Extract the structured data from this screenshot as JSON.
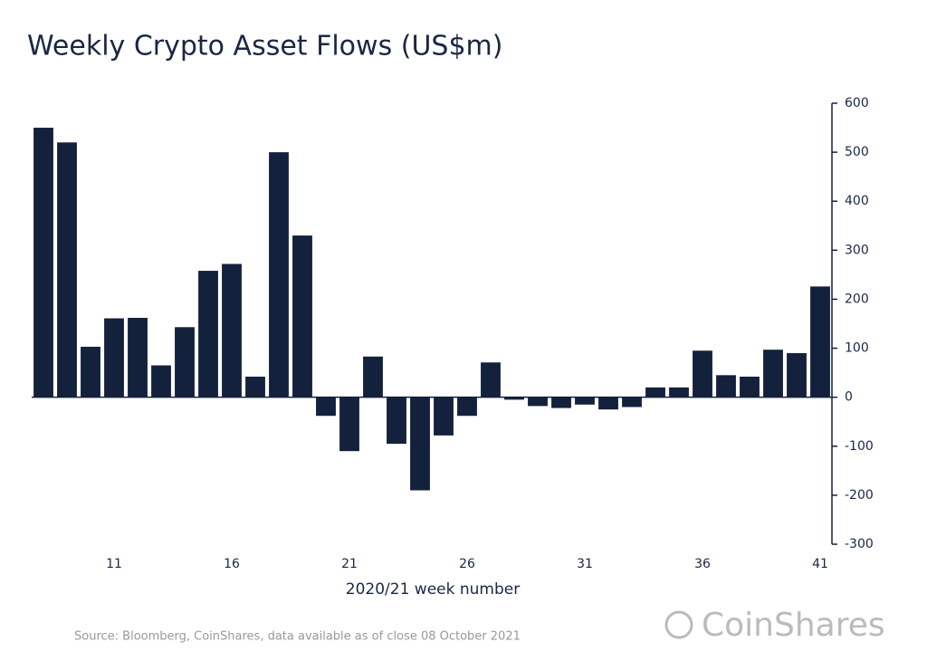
{
  "chart_data": {
    "type": "bar",
    "title": "Weekly Crypto Asset Flows (US$m)",
    "x_label": "2020/21 week number",
    "source": "Source: Bloomberg, CoinShares, data available as of close 08 October 2021",
    "brand": "CoinShares",
    "categories": [
      null,
      null,
      null,
      "11",
      null,
      null,
      null,
      null,
      "16",
      null,
      null,
      null,
      null,
      "21",
      null,
      null,
      null,
      null,
      "26",
      null,
      null,
      null,
      null,
      "31",
      null,
      null,
      null,
      null,
      "36",
      null,
      null,
      null,
      null,
      "41"
    ],
    "values": [
      550,
      520,
      103,
      161,
      162,
      65,
      143,
      258,
      272,
      42,
      500,
      330,
      -38,
      -110,
      83,
      -95,
      -190,
      -78,
      -38,
      71,
      -5,
      -18,
      -22,
      -15,
      -25,
      -20,
      20,
      20,
      95,
      45,
      42,
      97,
      90,
      226
    ],
    "color": "#14213d",
    "ylim": [
      -300,
      600
    ],
    "yticks": [
      -300,
      -200,
      -100,
      0,
      100,
      200,
      300,
      400,
      500,
      600
    ]
  }
}
